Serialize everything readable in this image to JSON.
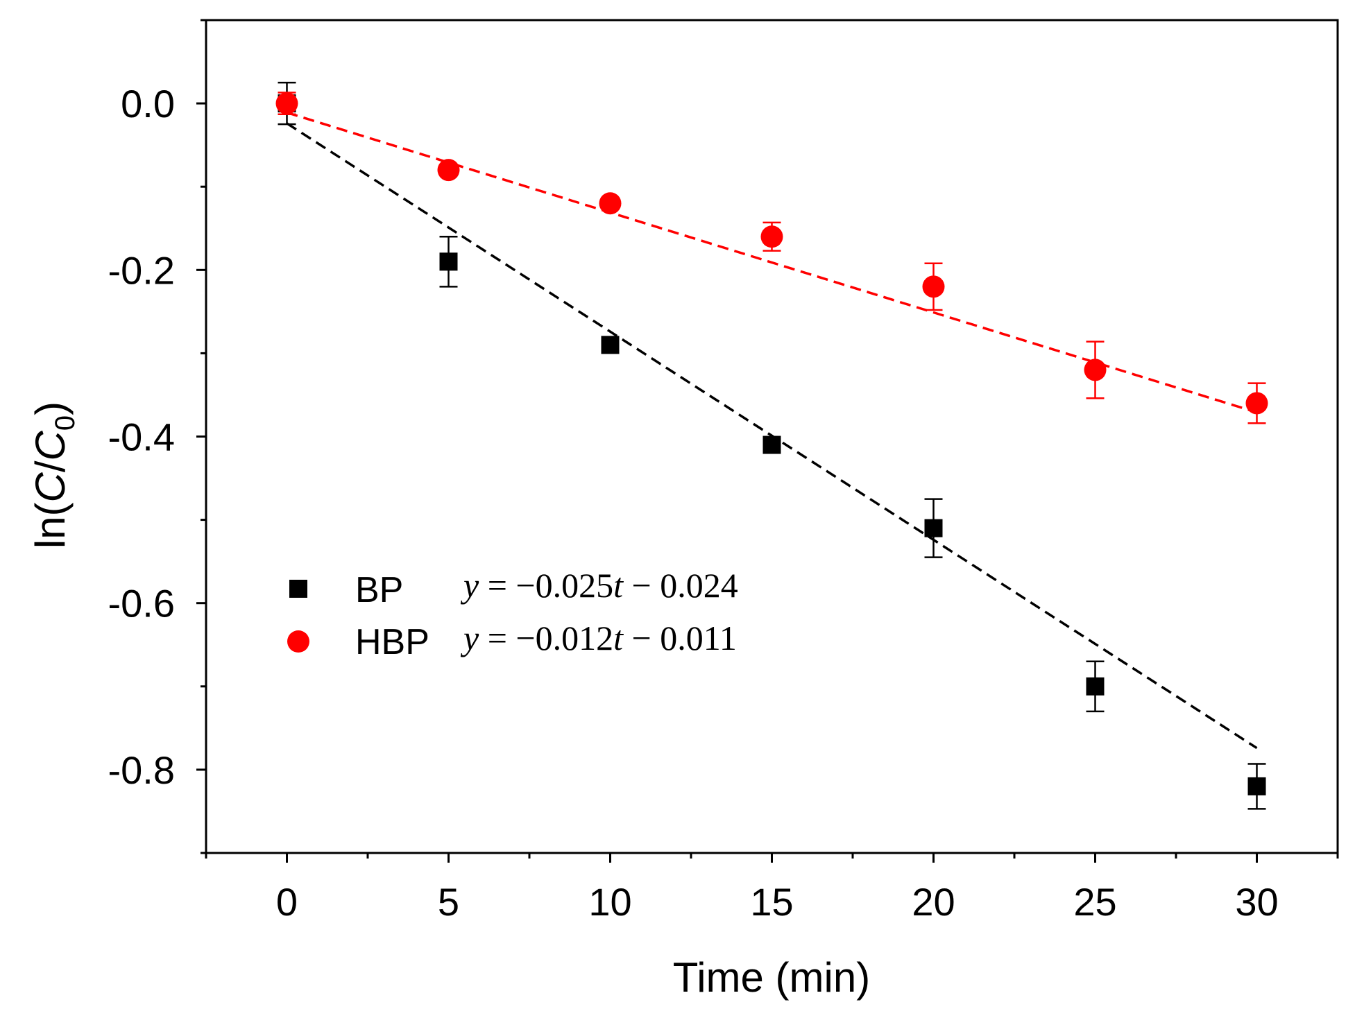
{
  "chart_data": {
    "type": "scatter",
    "xlabel": "Time (min)",
    "ylabel": {
      "prefix": "ln(",
      "var1": "C",
      "sep": "/",
      "var2": "C",
      "sub": "0",
      "suffix": ")"
    },
    "xlim": [
      -2.5,
      32.5
    ],
    "ylim": [
      -0.9,
      0.1
    ],
    "xticks": [
      0,
      5,
      10,
      15,
      20,
      25,
      30
    ],
    "xtick_labels": [
      "0",
      "5",
      "10",
      "15",
      "20",
      "25",
      "30"
    ],
    "xminor": [
      -2.5,
      2.5,
      7.5,
      12.5,
      17.5,
      22.5,
      27.5,
      32.5
    ],
    "yticks": [
      0.0,
      -0.2,
      -0.4,
      -0.6,
      -0.8
    ],
    "ytick_labels": [
      "0.0",
      "-0.2",
      "-0.4",
      "-0.6",
      "-0.8"
    ],
    "yminor": [
      0.1,
      -0.1,
      -0.3,
      -0.5,
      -0.7,
      -0.9
    ],
    "series": [
      {
        "name": "BP",
        "color": "#000000",
        "marker": "square",
        "x": [
          0,
          5,
          10,
          15,
          20,
          25,
          30
        ],
        "y": [
          0.0,
          -0.19,
          -0.29,
          -0.41,
          -0.51,
          -0.7,
          -0.82
        ],
        "err": [
          0.025,
          0.03,
          0.0,
          0.0,
          0.035,
          0.03,
          0.027
        ],
        "fit": {
          "slope": -0.025,
          "intercept": -0.024,
          "style": "dashed"
        },
        "equation": {
          "lhs": "y",
          "eq": " = −0.025",
          "tvar": "t",
          "rest": " − 0.024"
        }
      },
      {
        "name": "HBP",
        "color": "#ff0000",
        "marker": "circle",
        "x": [
          0,
          5,
          10,
          15,
          20,
          25,
          30
        ],
        "y": [
          0.0,
          -0.08,
          -0.12,
          -0.16,
          -0.22,
          -0.32,
          -0.36
        ],
        "err": [
          0.013,
          0.0,
          0.0,
          0.017,
          0.028,
          0.034,
          0.024
        ],
        "fit": {
          "slope": -0.012,
          "intercept": -0.011,
          "style": "dashed"
        },
        "equation": {
          "lhs": "y",
          "eq": " = −0.012",
          "tvar": "t",
          "rest": " − 0.011"
        }
      }
    ],
    "legend_position": "lower-left"
  }
}
